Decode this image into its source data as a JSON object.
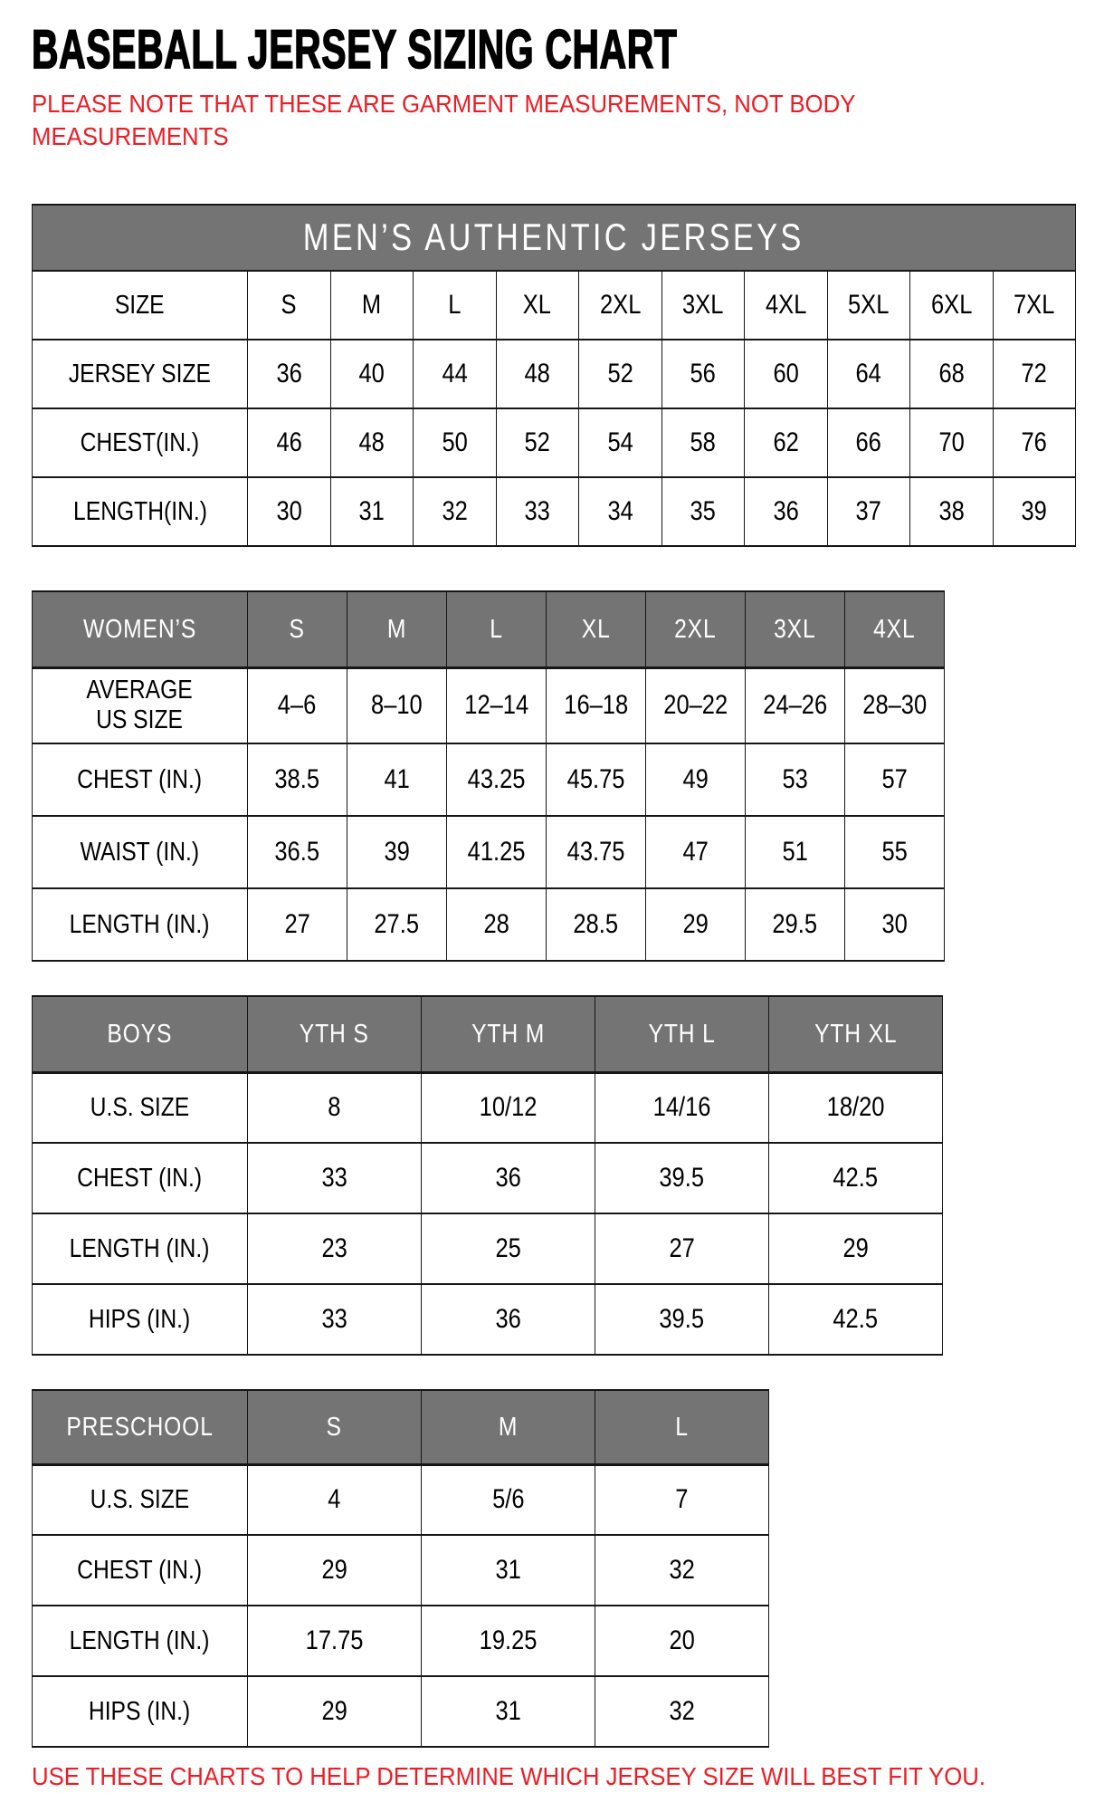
{
  "page": {
    "title": "BASEBALL JERSEY SIZING CHART",
    "note_line1": "PLEASE NOTE THAT THESE ARE GARMENT MEASUREMENTS, NOT BODY",
    "note_line2": "MEASUREMENTS",
    "footer": "USE THESE CHARTS TO HELP DETERMINE WHICH JERSEY SIZE WILL BEST FIT YOU.",
    "colors": {
      "header_gray": "#747474",
      "accent_red": "#ed1c24",
      "border_black": "#161616",
      "background": "#ffffff"
    }
  },
  "tables": {
    "mens": {
      "banner": "MEN’S AUTHENTIC JERSEYS",
      "rows": [
        [
          "SIZE",
          "S",
          "M",
          "L",
          "XL",
          "2XL",
          "3XL",
          "4XL",
          "5XL",
          "6XL",
          "7XL"
        ],
        [
          "JERSEY SIZE",
          "36",
          "40",
          "44",
          "48",
          "52",
          "56",
          "60",
          "64",
          "68",
          "72"
        ],
        [
          "CHEST(IN.)",
          "46",
          "48",
          "50",
          "52",
          "54",
          "58",
          "62",
          "66",
          "70",
          "76"
        ],
        [
          "LENGTH(IN.)",
          "30",
          "31",
          "32",
          "33",
          "34",
          "35",
          "36",
          "37",
          "38",
          "39"
        ]
      ]
    },
    "womens": {
      "header": [
        "WOMEN’S",
        "S",
        "M",
        "L",
        "XL",
        "2XL",
        "3XL",
        "4XL"
      ],
      "rows": [
        [
          "AVERAGE\nUS SIZE",
          "4–6",
          "8–10",
          "12–14",
          "16–18",
          "20–22",
          "24–26",
          "28–30"
        ],
        [
          "CHEST (IN.)",
          "38.5",
          "41",
          "43.25",
          "45.75",
          "49",
          "53",
          "57"
        ],
        [
          "WAIST (IN.)",
          "36.5",
          "39",
          "41.25",
          "43.75",
          "47",
          "51",
          "55"
        ],
        [
          "LENGTH (IN.)",
          "27",
          "27.5",
          "28",
          "28.5",
          "29",
          "29.5",
          "30"
        ]
      ]
    },
    "boys": {
      "header": [
        "BOYS",
        "YTH S",
        "YTH M",
        "YTH L",
        "YTH XL"
      ],
      "rows": [
        [
          "U.S. SIZE",
          "8",
          "10/12",
          "14/16",
          "18/20"
        ],
        [
          "CHEST (IN.)",
          "33",
          "36",
          "39.5",
          "42.5"
        ],
        [
          "LENGTH (IN.)",
          "23",
          "25",
          "27",
          "29"
        ],
        [
          "HIPS (IN.)",
          "33",
          "36",
          "39.5",
          "42.5"
        ]
      ]
    },
    "preschool": {
      "header": [
        "PRESCHOOL",
        "S",
        "M",
        "L"
      ],
      "rows": [
        [
          "U.S. SIZE",
          "4",
          "5/6",
          "7"
        ],
        [
          "CHEST (IN.)",
          "29",
          "31",
          "32"
        ],
        [
          "LENGTH (IN.)",
          "17.75",
          "19.25",
          "20"
        ],
        [
          "HIPS (IN.)",
          "29",
          "31",
          "32"
        ]
      ]
    }
  }
}
